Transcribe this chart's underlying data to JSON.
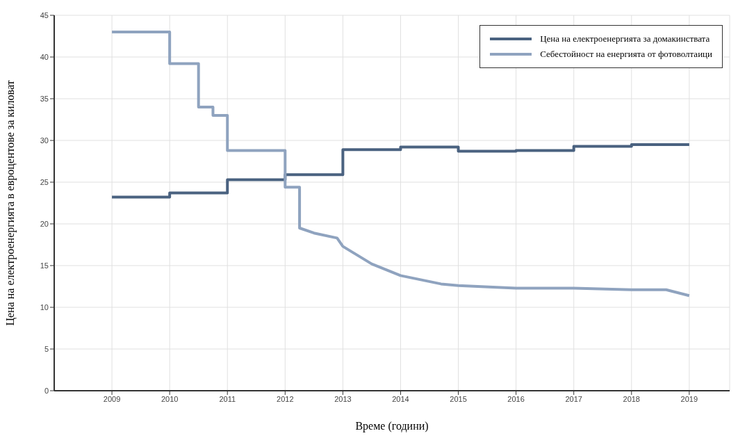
{
  "chart_data": {
    "type": "line",
    "xlabel": "Време (години)",
    "ylabel": "Цена на електроенергията в евроцентове за киловат",
    "xlim": [
      2008,
      2019.7
    ],
    "xticks": [
      2009,
      2010,
      2011,
      2012,
      2013,
      2014,
      2015,
      2016,
      2017,
      2018,
      2019
    ],
    "ylim": [
      0,
      45
    ],
    "yticks": [
      0,
      5,
      10,
      15,
      20,
      25,
      30,
      35,
      40,
      45
    ],
    "grid": true,
    "legend": "top right",
    "series": [
      {
        "name": "Цена на електроенергията за домакинствата",
        "type": "step",
        "color": "#4a6280",
        "x": [
          2009,
          2010,
          2011,
          2012,
          2013,
          2014,
          2015,
          2016,
          2017,
          2018,
          2019
        ],
        "values": [
          23.2,
          23.7,
          25.3,
          25.9,
          28.9,
          29.2,
          28.7,
          28.8,
          29.3,
          29.5,
          29.5
        ]
      },
      {
        "name": "Себестойност на енергията от фотоволтаици",
        "type": "line",
        "color": "#8fa3bf",
        "x": [
          2009,
          2010,
          2010,
          2010.5,
          2010.5,
          2010.75,
          2010.75,
          2011,
          2011,
          2012,
          2012,
          2012.25,
          2012.25,
          2012.5,
          2012.9,
          2013,
          2013.5,
          2014,
          2014.7,
          2015,
          2016,
          2017,
          2018,
          2018.6,
          2019
        ],
        "values": [
          43,
          43,
          39.2,
          39.2,
          34,
          34,
          33,
          33,
          28.8,
          28.8,
          24.4,
          24.4,
          19.5,
          18.9,
          18.3,
          17.3,
          15.2,
          13.8,
          12.8,
          12.6,
          12.3,
          12.3,
          12.1,
          12.1,
          11.4
        ]
      }
    ]
  }
}
